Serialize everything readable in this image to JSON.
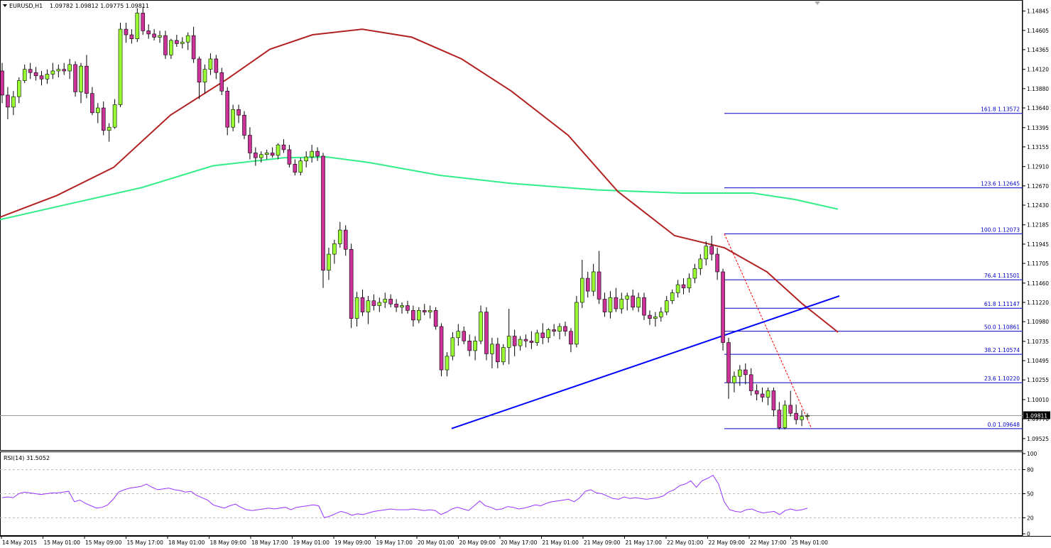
{
  "chart_data": {
    "type": "candlestick",
    "header": {
      "symbol": "EURUSD,H1",
      "quote": "1.09782 1.09812 1.09775 1.09811"
    },
    "price_axis": {
      "ylim": [
        1.094,
        1.1493
      ],
      "ticks": [
        "1.14845",
        "1.14605",
        "1.14365",
        "1.14120",
        "1.13880",
        "1.13640",
        "1.13395",
        "1.13155",
        "1.12910",
        "1.12670",
        "1.12430",
        "1.12185",
        "1.11945",
        "1.11705",
        "1.11460",
        "1.11220",
        "1.10980",
        "1.10735",
        "1.10495",
        "1.10255",
        "1.10010",
        "1.09770",
        "1.09525"
      ],
      "current_price": 1.09811,
      "current_label": "1.09811"
    },
    "time_axis": {
      "labels": [
        "14 May 2015",
        "15 May 01:00",
        "15 May 09:00",
        "15 May 17:00",
        "18 May 01:00",
        "18 May 09:00",
        "18 May 17:00",
        "19 May 01:00",
        "19 May 09:00",
        "19 May 17:00",
        "20 May 01:00",
        "20 May 09:00",
        "20 May 17:00",
        "21 May 01:00",
        "21 May 09:00",
        "21 May 17:00",
        "22 May 01:00",
        "22 May 09:00",
        "22 May 17:00",
        "25 May 01:00"
      ]
    },
    "candles": [
      [
        1.141,
        1.142,
        1.137,
        1.138
      ],
      [
        1.138,
        1.139,
        1.135,
        1.1365
      ],
      [
        1.1365,
        1.1385,
        1.1355,
        1.1378
      ],
      [
        1.1378,
        1.1402,
        1.137,
        1.1398
      ],
      [
        1.1398,
        1.1418,
        1.1395,
        1.1412
      ],
      [
        1.1412,
        1.142,
        1.14,
        1.1408
      ],
      [
        1.1408,
        1.1415,
        1.1398,
        1.1404
      ],
      [
        1.1404,
        1.141,
        1.1392,
        1.14
      ],
      [
        1.14,
        1.1412,
        1.1394,
        1.1406
      ],
      [
        1.1406,
        1.142,
        1.14,
        1.141
      ],
      [
        1.141,
        1.1418,
        1.1402,
        1.1412
      ],
      [
        1.1412,
        1.142,
        1.1405,
        1.141
      ],
      [
        1.141,
        1.1425,
        1.14,
        1.1418
      ],
      [
        1.1418,
        1.1422,
        1.1378,
        1.1384
      ],
      [
        1.1384,
        1.142,
        1.137,
        1.1416
      ],
      [
        1.1416,
        1.143,
        1.1376,
        1.1382
      ],
      [
        1.1382,
        1.139,
        1.1355,
        1.1358
      ],
      [
        1.1358,
        1.137,
        1.1345,
        1.1364
      ],
      [
        1.1364,
        1.1372,
        1.133,
        1.1336
      ],
      [
        1.1336,
        1.1345,
        1.1322,
        1.134
      ],
      [
        1.134,
        1.1375,
        1.1338,
        1.1368
      ],
      [
        1.1368,
        1.147,
        1.1365,
        1.1462
      ],
      [
        1.1462,
        1.147,
        1.1445,
        1.1455
      ],
      [
        1.1455,
        1.1462,
        1.1444,
        1.145
      ],
      [
        1.145,
        1.1488,
        1.1446,
        1.1482
      ],
      [
        1.1482,
        1.149,
        1.1455,
        1.146
      ],
      [
        1.146,
        1.1468,
        1.145,
        1.1456
      ],
      [
        1.1456,
        1.1462,
        1.1448,
        1.1452
      ],
      [
        1.1452,
        1.146,
        1.1445,
        1.1454
      ],
      [
        1.1454,
        1.146,
        1.1425,
        1.143
      ],
      [
        1.143,
        1.145,
        1.1425,
        1.1448
      ],
      [
        1.1448,
        1.1455,
        1.144,
        1.1444
      ],
      [
        1.1444,
        1.1452,
        1.1438,
        1.1446
      ],
      [
        1.1446,
        1.1458,
        1.1436,
        1.1454
      ],
      [
        1.1454,
        1.1465,
        1.142,
        1.1425
      ],
      [
        1.1425,
        1.1428,
        1.1375,
        1.1396
      ],
      [
        1.1396,
        1.1418,
        1.1382,
        1.1412
      ],
      [
        1.1412,
        1.1432,
        1.1405,
        1.1425
      ],
      [
        1.1425,
        1.143,
        1.14,
        1.1408
      ],
      [
        1.1408,
        1.1414,
        1.138,
        1.1385
      ],
      [
        1.1385,
        1.139,
        1.133,
        1.134
      ],
      [
        1.134,
        1.1368,
        1.1335,
        1.1362
      ],
      [
        1.1362,
        1.1368,
        1.1345,
        1.1355
      ],
      [
        1.1355,
        1.136,
        1.1325,
        1.133
      ],
      [
        1.133,
        1.134,
        1.13,
        1.1308
      ],
      [
        1.1308,
        1.1315,
        1.1292,
        1.1302
      ],
      [
        1.1302,
        1.131,
        1.1296,
        1.1306
      ],
      [
        1.1306,
        1.1312,
        1.13,
        1.1308
      ],
      [
        1.1308,
        1.1315,
        1.1302,
        1.1305
      ],
      [
        1.1305,
        1.132,
        1.13,
        1.1318
      ],
      [
        1.1318,
        1.1325,
        1.1308,
        1.1312
      ],
      [
        1.1312,
        1.1318,
        1.129,
        1.1294
      ],
      [
        1.1294,
        1.13,
        1.128,
        1.1284
      ],
      [
        1.1284,
        1.1302,
        1.128,
        1.1298
      ],
      [
        1.1298,
        1.131,
        1.129,
        1.1303
      ],
      [
        1.1303,
        1.1318,
        1.1296,
        1.131
      ],
      [
        1.131,
        1.1315,
        1.1298,
        1.1304
      ],
      [
        1.1304,
        1.1308,
        1.114,
        1.1162
      ],
      [
        1.1162,
        1.119,
        1.115,
        1.1182
      ],
      [
        1.1182,
        1.12,
        1.117,
        1.1195
      ],
      [
        1.1195,
        1.1222,
        1.119,
        1.1212
      ],
      [
        1.1212,
        1.1218,
        1.118,
        1.1188
      ],
      [
        1.1188,
        1.1195,
        1.109,
        1.1102
      ],
      [
        1.1102,
        1.1135,
        1.1092,
        1.1128
      ],
      [
        1.1128,
        1.1138,
        1.1105,
        1.111
      ],
      [
        1.111,
        1.113,
        1.1095,
        1.1124
      ],
      [
        1.1124,
        1.1132,
        1.1112,
        1.1118
      ],
      [
        1.1118,
        1.1128,
        1.111,
        1.1122
      ],
      [
        1.1122,
        1.1134,
        1.1115,
        1.1126
      ],
      [
        1.1126,
        1.1132,
        1.1116,
        1.112
      ],
      [
        1.112,
        1.1126,
        1.111,
        1.1116
      ],
      [
        1.1116,
        1.1122,
        1.1108,
        1.1118
      ],
      [
        1.1118,
        1.1124,
        1.1108,
        1.1112
      ],
      [
        1.1112,
        1.1118,
        1.1092,
        1.11
      ],
      [
        1.11,
        1.1116,
        1.1096,
        1.1112
      ],
      [
        1.1112,
        1.112,
        1.1106,
        1.111
      ],
      [
        1.111,
        1.1118,
        1.1102,
        1.1112
      ],
      [
        1.1112,
        1.1116,
        1.1088,
        1.1092
      ],
      [
        1.1092,
        1.1096,
        1.103,
        1.1038
      ],
      [
        1.1038,
        1.106,
        1.103,
        1.1055
      ],
      [
        1.1055,
        1.1085,
        1.105,
        1.1078
      ],
      [
        1.1078,
        1.1095,
        1.1068,
        1.1086
      ],
      [
        1.1086,
        1.1092,
        1.107,
        1.1074
      ],
      [
        1.1074,
        1.1082,
        1.1055,
        1.1062
      ],
      [
        1.1062,
        1.108,
        1.105,
        1.1074
      ],
      [
        1.1074,
        1.1118,
        1.107,
        1.111
      ],
      [
        1.111,
        1.1116,
        1.105,
        1.1058
      ],
      [
        1.1058,
        1.1078,
        1.104,
        1.107
      ],
      [
        1.107,
        1.1078,
        1.104,
        1.1048
      ],
      [
        1.1048,
        1.107,
        1.1044,
        1.1066
      ],
      [
        1.1066,
        1.1114,
        1.1045,
        1.108
      ],
      [
        1.108,
        1.1088,
        1.1055,
        1.1068
      ],
      [
        1.1068,
        1.108,
        1.1062,
        1.1076
      ],
      [
        1.1076,
        1.1082,
        1.1066,
        1.1074
      ],
      [
        1.1074,
        1.1086,
        1.1064,
        1.1072
      ],
      [
        1.1072,
        1.1088,
        1.1068,
        1.1084
      ],
      [
        1.1084,
        1.1096,
        1.107,
        1.1078
      ],
      [
        1.1078,
        1.109,
        1.1072,
        1.1088
      ],
      [
        1.1088,
        1.1095,
        1.108,
        1.1086
      ],
      [
        1.1086,
        1.1096,
        1.1076,
        1.1092
      ],
      [
        1.1092,
        1.1098,
        1.108,
        1.1086
      ],
      [
        1.1086,
        1.109,
        1.106,
        1.107
      ],
      [
        1.107,
        1.113,
        1.1066,
        1.1122
      ],
      [
        1.1122,
        1.1175,
        1.1115,
        1.1152
      ],
      [
        1.1152,
        1.116,
        1.1128,
        1.1136
      ],
      [
        1.1136,
        1.117,
        1.113,
        1.116
      ],
      [
        1.116,
        1.1186,
        1.112,
        1.1126
      ],
      [
        1.1126,
        1.1134,
        1.1104,
        1.111
      ],
      [
        1.111,
        1.1136,
        1.1102,
        1.1128
      ],
      [
        1.1128,
        1.114,
        1.111,
        1.1114
      ],
      [
        1.1114,
        1.1134,
        1.1108,
        1.1126
      ],
      [
        1.1126,
        1.1134,
        1.1112,
        1.113
      ],
      [
        1.113,
        1.1138,
        1.1112,
        1.1116
      ],
      [
        1.1116,
        1.1134,
        1.111,
        1.1128
      ],
      [
        1.1128,
        1.1134,
        1.11,
        1.1106
      ],
      [
        1.1106,
        1.1112,
        1.1094,
        1.1102
      ],
      [
        1.1102,
        1.111,
        1.1092,
        1.1104
      ],
      [
        1.1104,
        1.1116,
        1.1098,
        1.111
      ],
      [
        1.111,
        1.113,
        1.1106,
        1.1124
      ],
      [
        1.1124,
        1.1138,
        1.112,
        1.1134
      ],
      [
        1.1134,
        1.115,
        1.1128,
        1.1144
      ],
      [
        1.1144,
        1.1152,
        1.1132,
        1.114
      ],
      [
        1.114,
        1.1158,
        1.1134,
        1.1152
      ],
      [
        1.1152,
        1.117,
        1.1146,
        1.1164
      ],
      [
        1.1164,
        1.1182,
        1.1156,
        1.1176
      ],
      [
        1.1176,
        1.1198,
        1.1168,
        1.1192
      ],
      [
        1.1192,
        1.1205,
        1.1174,
        1.1182
      ],
      [
        1.1182,
        1.119,
        1.115,
        1.116
      ],
      [
        1.116,
        1.1164,
        1.1062,
        1.1072
      ],
      [
        1.1072,
        1.1078,
        1.1002,
        1.1022
      ],
      [
        1.1022,
        1.1036,
        1.101,
        1.103
      ],
      [
        1.103,
        1.1044,
        1.1018,
        1.1038
      ],
      [
        1.1038,
        1.1046,
        1.102,
        1.1032
      ],
      [
        1.1032,
        1.104,
        1.1006,
        1.1012
      ],
      [
        1.1012,
        1.102,
        1.1,
        1.1008
      ],
      [
        1.1008,
        1.1016,
        1.0998,
        1.1004
      ],
      [
        1.1004,
        1.1016,
        1.0994,
        1.1012
      ],
      [
        1.1012,
        1.1016,
        1.098,
        1.0988
      ],
      [
        1.0988,
        1.0998,
        1.0964,
        1.0966
      ],
      [
        1.0966,
        1.1,
        1.0964,
        1.0994
      ],
      [
        1.0994,
        1.1012,
        1.098,
        1.0984
      ],
      [
        1.0984,
        1.0995,
        1.097,
        1.0976
      ],
      [
        1.0976,
        1.0988,
        1.0968,
        1.098
      ],
      [
        1.098,
        1.0984,
        1.0977,
        1.0981
      ]
    ],
    "ema_red": [
      [
        0,
        1.1228
      ],
      [
        80,
        1.1255
      ],
      [
        160,
        1.129
      ],
      [
        240,
        1.1355
      ],
      [
        320,
        1.14
      ],
      [
        380,
        1.1437
      ],
      [
        440,
        1.1455
      ],
      [
        510,
        1.1462
      ],
      [
        580,
        1.1452
      ],
      [
        650,
        1.1425
      ],
      [
        720,
        1.1385
      ],
      [
        800,
        1.133
      ],
      [
        870,
        1.126
      ],
      [
        950,
        1.1205
      ],
      [
        1020,
        1.119
      ],
      [
        1080,
        1.116
      ],
      [
        1130,
        1.112
      ],
      [
        1180,
        1.1085
      ]
    ],
    "ema_green": [
      [
        0,
        1.1225
      ],
      [
        100,
        1.1245
      ],
      [
        200,
        1.1265
      ],
      [
        300,
        1.1292
      ],
      [
        400,
        1.1302
      ],
      [
        460,
        1.1303
      ],
      [
        520,
        1.1296
      ],
      [
        620,
        1.128
      ],
      [
        720,
        1.127
      ],
      [
        840,
        1.1262
      ],
      [
        960,
        1.1258
      ],
      [
        1060,
        1.1258
      ],
      [
        1120,
        1.125
      ],
      [
        1180,
        1.1238
      ]
    ],
    "trendline": [
      [
        636,
        1.0965
      ],
      [
        1182,
        1.113
      ]
    ],
    "fibonacci": {
      "levels": [
        {
          "ratio": 161.8,
          "price": 1.13572,
          "label": "161.8 1.13572"
        },
        {
          "ratio": 123.6,
          "price": 1.12645,
          "label": "123.6 1.12645"
        },
        {
          "ratio": 100.0,
          "price": 1.12073,
          "label": "100.0 1.12073"
        },
        {
          "ratio": 76.4,
          "price": 1.11501,
          "label": "76.4 1.11501"
        },
        {
          "ratio": 61.8,
          "price": 1.11147,
          "label": "61.8 1.11147"
        },
        {
          "ratio": 50.0,
          "price": 1.10861,
          "label": "50.0 1.10861"
        },
        {
          "ratio": 38.2,
          "price": 1.10574,
          "label": "38.2 1.10574"
        },
        {
          "ratio": 23.6,
          "price": 1.1022,
          "label": "23.6 1.10220"
        },
        {
          "ratio": 0.0,
          "price": 1.09648,
          "label": "0.0 1.09648"
        }
      ],
      "diagonal_from": 1.12073,
      "diagonal_to": 1.09648
    },
    "rsi": {
      "title": "RSI(14) 31.5052",
      "period": 14,
      "last_value": 31.5052,
      "ylim": [
        0,
        100
      ],
      "ticks": [
        "100",
        "80",
        "50",
        "20",
        "0"
      ],
      "levels": [
        80,
        50,
        20
      ],
      "values": [
        45,
        46,
        45,
        50,
        52,
        51,
        50,
        49,
        50,
        51,
        51,
        52,
        53,
        40,
        42,
        38,
        35,
        32,
        33,
        36,
        43,
        52,
        55,
        57,
        58,
        59,
        62,
        58,
        55,
        56,
        57,
        55,
        54,
        52,
        53,
        48,
        45,
        42,
        36,
        34,
        32,
        35,
        37,
        33,
        30,
        29,
        30,
        31,
        32,
        31,
        32,
        33,
        30,
        33,
        34,
        35,
        36,
        35,
        20,
        22,
        25,
        28,
        26,
        23,
        25,
        24,
        26,
        28,
        29,
        30,
        31,
        30,
        30,
        30,
        31,
        30,
        29,
        30,
        29,
        24,
        27,
        31,
        33,
        31,
        29,
        35,
        41,
        35,
        33,
        30,
        31,
        34,
        33,
        31,
        32,
        34,
        36,
        35,
        38,
        40,
        41,
        42,
        43,
        40,
        45,
        53,
        55,
        51,
        50,
        47,
        44,
        43,
        46,
        44,
        45,
        44,
        43,
        44,
        45,
        47,
        52,
        55,
        60,
        62,
        66,
        58,
        66,
        69,
        73,
        62,
        40,
        30,
        28,
        27,
        30,
        31,
        28,
        26,
        27,
        28,
        24,
        29,
        31,
        29,
        30,
        32
      ]
    },
    "colors": {
      "bull_candle": "#99ff33",
      "bear_candle": "#cc3399",
      "candle_outline": "#000000",
      "ema_red": "#b22222",
      "ema_green": "#33ee88",
      "trendline": "#0000ff",
      "fibonacci": "#0000cc",
      "fib_diagonal": "#ff0000",
      "rsi_line": "#9933ff",
      "grid": "#bbbbbb",
      "current_price_line": "#999999"
    }
  }
}
